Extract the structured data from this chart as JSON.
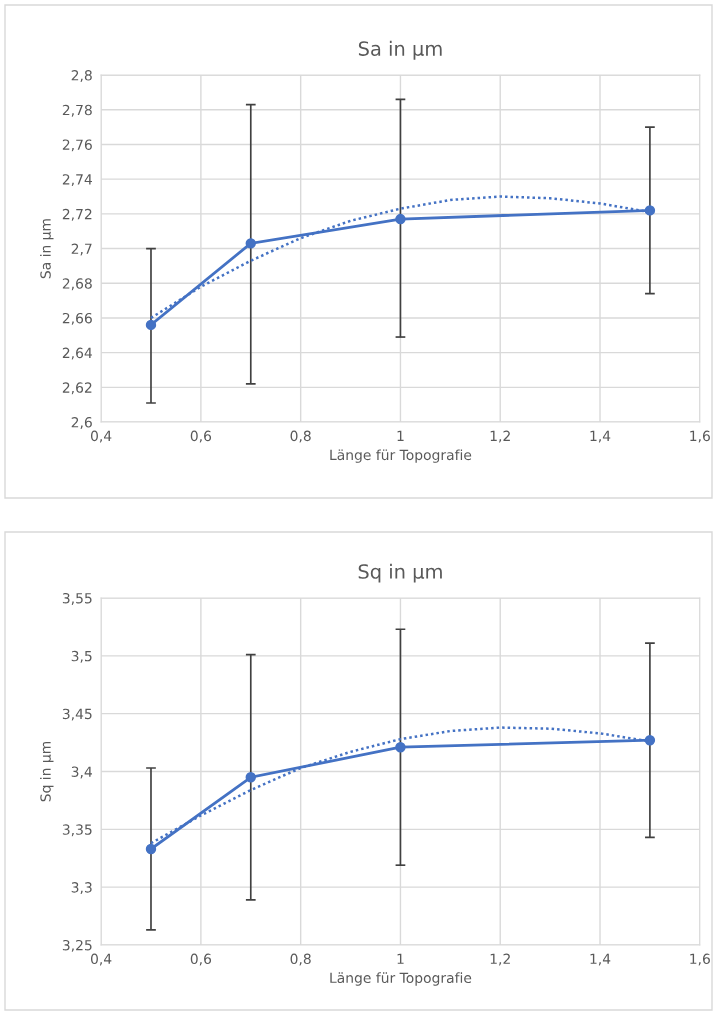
{
  "chart_data": [
    {
      "type": "line",
      "title": "Sa in µm",
      "xlabel": "Länge für Topografie",
      "ylabel": "Sa in µm",
      "xlim": [
        0.4,
        1.6
      ],
      "xticks": [
        {
          "value": 0.4,
          "label": "0,4"
        },
        {
          "value": 0.6,
          "label": "0,6"
        },
        {
          "value": 0.8,
          "label": "0,8"
        },
        1,
        {
          "value": 1.2,
          "label": "1,2"
        },
        {
          "value": 1.4,
          "label": "1,4"
        },
        {
          "value": 1.6,
          "label": "1,6"
        }
      ],
      "ylim": [
        2.6,
        2.8
      ],
      "yticks": [
        {
          "value": 2.6,
          "label": "2,6"
        },
        {
          "value": 2.62,
          "label": "2,62"
        },
        {
          "value": 2.64,
          "label": "2,64"
        },
        {
          "value": 2.66,
          "label": "2,66"
        },
        {
          "value": 2.68,
          "label": "2,68"
        },
        {
          "value": 2.7,
          "label": "2,7"
        },
        {
          "value": 2.72,
          "label": "2,72"
        },
        {
          "value": 2.74,
          "label": "2,74"
        },
        {
          "value": 2.76,
          "label": "2,76"
        },
        {
          "value": 2.78,
          "label": "2,78"
        },
        {
          "value": 2.8,
          "label": "2,8"
        }
      ],
      "grid": true,
      "series": [
        {
          "color": "#4472c4",
          "marker": "circle",
          "line_style": "solid",
          "x": [
            0.5,
            0.7,
            1.0,
            1.5
          ],
          "values": [
            2.656,
            2.703,
            2.717,
            2.722
          ],
          "errors": [
            [
              2.611,
              2.7
            ],
            [
              2.622,
              2.783
            ],
            [
              2.649,
              2.786
            ],
            [
              2.674,
              2.77
            ]
          ]
        },
        {
          "color": "#4472c4",
          "marker": "none",
          "line_style": "dotted",
          "x": [
            0.5,
            0.6,
            0.7,
            0.8,
            0.9,
            1.0,
            1.1,
            1.2,
            1.3,
            1.4,
            1.5
          ],
          "values": [
            2.66,
            2.678,
            2.693,
            2.706,
            2.716,
            2.723,
            2.728,
            2.73,
            2.729,
            2.726,
            2.721
          ]
        }
      ]
    },
    {
      "type": "line",
      "title": "Sq in µm",
      "xlabel": "Länge für Topografie",
      "ylabel": "Sq in µm",
      "xlim": [
        0.4,
        1.6
      ],
      "xticks": [
        {
          "value": 0.4,
          "label": "0,4"
        },
        {
          "value": 0.6,
          "label": "0,6"
        },
        {
          "value": 0.8,
          "label": "0,8"
        },
        1,
        {
          "value": 1.2,
          "label": "1,2"
        },
        {
          "value": 1.4,
          "label": "1,4"
        },
        {
          "value": 1.6,
          "label": "1,6"
        }
      ],
      "ylim": [
        3.25,
        3.55
      ],
      "yticks": [
        {
          "value": 3.25,
          "label": "3,25"
        },
        {
          "value": 3.3,
          "label": "3,3"
        },
        {
          "value": 3.35,
          "label": "3,35"
        },
        {
          "value": 3.4,
          "label": "3,4"
        },
        {
          "value": 3.45,
          "label": "3,45"
        },
        {
          "value": 3.5,
          "label": "3,5"
        },
        {
          "value": 3.55,
          "label": "3,55"
        }
      ],
      "grid": true,
      "series": [
        {
          "color": "#4472c4",
          "marker": "circle",
          "line_style": "solid",
          "x": [
            0.5,
            0.7,
            1.0,
            1.5
          ],
          "values": [
            3.333,
            3.395,
            3.421,
            3.427
          ],
          "errors": [
            [
              3.263,
              3.403
            ],
            [
              3.289,
              3.501
            ],
            [
              3.319,
              3.523
            ],
            [
              3.343,
              3.511
            ]
          ]
        },
        {
          "color": "#4472c4",
          "marker": "none",
          "line_style": "dotted",
          "x": [
            0.5,
            0.6,
            0.7,
            0.8,
            0.9,
            1.0,
            1.1,
            1.2,
            1.3,
            1.4,
            1.5
          ],
          "values": [
            3.338,
            3.362,
            3.384,
            3.403,
            3.417,
            3.428,
            3.435,
            3.438,
            3.437,
            3.433,
            3.426
          ]
        }
      ]
    }
  ]
}
